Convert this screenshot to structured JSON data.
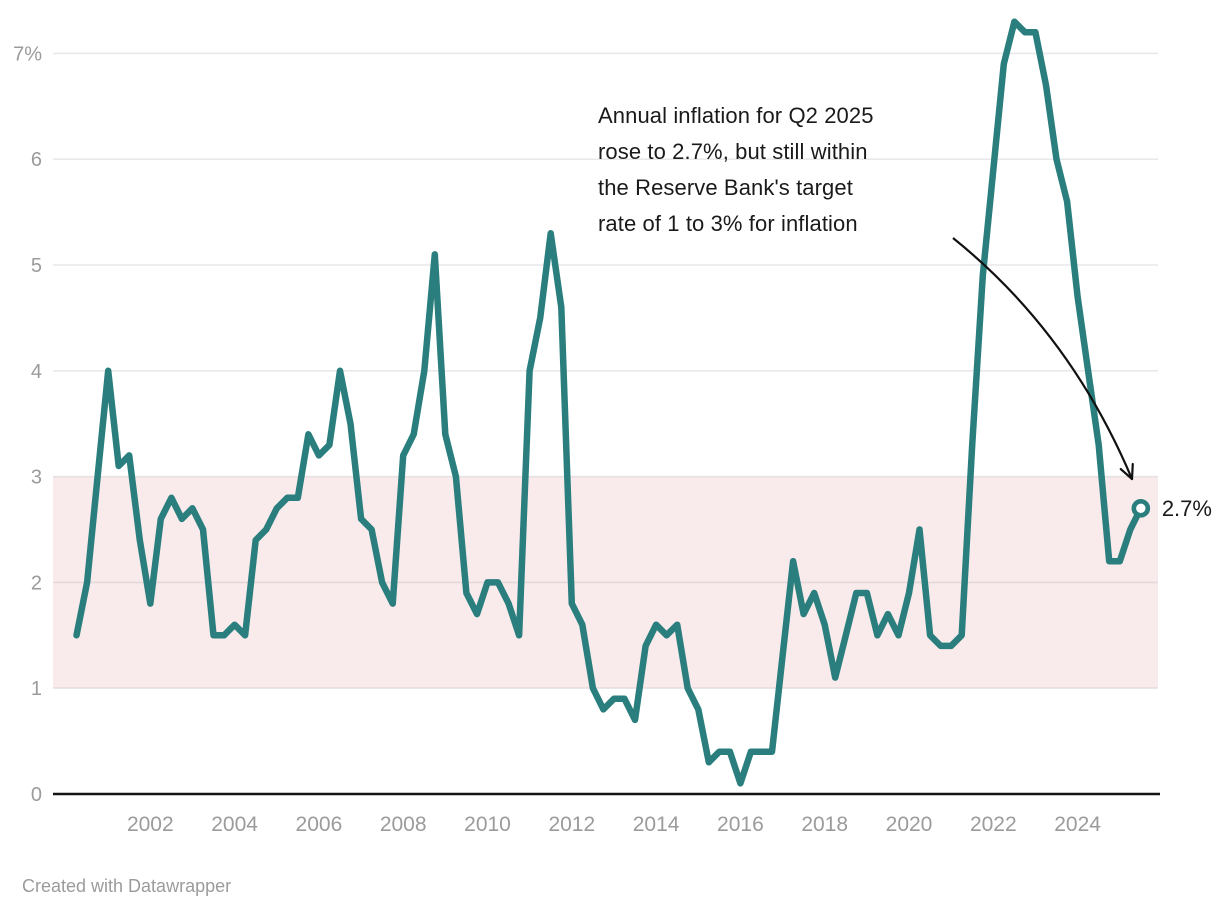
{
  "chart_data": {
    "type": "line",
    "title": "",
    "unit": "%",
    "frequency": "quarterly",
    "series_name": "Annual inflation rate",
    "x_start": "2000 Q1",
    "x_end": "2025 Q2",
    "values_by_year": {
      "2000": [
        1.5,
        2.0,
        3.0,
        4.0
      ],
      "2001": [
        3.1,
        3.2,
        2.4,
        1.8
      ],
      "2002": [
        2.6,
        2.8,
        2.6,
        2.7
      ],
      "2003": [
        2.5,
        1.5,
        1.5,
        1.6
      ],
      "2004": [
        1.5,
        2.4,
        2.5,
        2.7
      ],
      "2005": [
        2.8,
        2.8,
        3.4,
        3.2
      ],
      "2006": [
        3.3,
        4.0,
        3.5,
        2.6
      ],
      "2007": [
        2.5,
        2.0,
        1.8,
        3.2
      ],
      "2008": [
        3.4,
        4.0,
        5.1,
        3.4
      ],
      "2009": [
        3.0,
        1.9,
        1.7,
        2.0
      ],
      "2010": [
        2.0,
        1.8,
        1.5,
        4.0
      ],
      "2011": [
        4.5,
        5.3,
        4.6,
        1.8
      ],
      "2012": [
        1.6,
        1.0,
        0.8,
        0.9
      ],
      "2013": [
        0.9,
        0.7,
        1.4,
        1.6
      ],
      "2014": [
        1.5,
        1.6,
        1.0,
        0.8
      ],
      "2015": [
        0.3,
        0.4,
        0.4,
        0.1
      ],
      "2016": [
        0.4,
        0.4,
        0.4,
        1.3
      ],
      "2017": [
        2.2,
        1.7,
        1.9,
        1.6
      ],
      "2018": [
        1.1,
        1.5,
        1.9,
        1.9
      ],
      "2019": [
        1.5,
        1.7,
        1.5,
        1.9
      ],
      "2020": [
        2.5,
        1.5,
        1.4,
        1.4
      ],
      "2021": [
        1.5,
        3.3,
        4.9,
        5.9
      ],
      "2022": [
        6.9,
        7.3,
        7.2,
        7.2
      ],
      "2023": [
        6.7,
        6.0,
        5.6,
        4.7
      ],
      "2024": [
        4.0,
        3.3,
        2.2,
        2.2
      ],
      "2025": [
        2.5,
        2.7
      ]
    },
    "ylim": [
      0,
      7.5
    ],
    "y_ticks": [
      0,
      1,
      2,
      3,
      4,
      5,
      6,
      7
    ],
    "y_tick_labels": [
      "0",
      "1",
      "2",
      "3",
      "4",
      "5",
      "6",
      "7%"
    ],
    "x_tick_years": [
      2002,
      2004,
      2006,
      2008,
      2010,
      2012,
      2014,
      2016,
      2018,
      2020,
      2022,
      2024
    ],
    "grid": "horizontal",
    "legend_position": "none",
    "line_color": "#2A7E7D",
    "target_band": {
      "from": 1,
      "to": 3,
      "color": "#F9EBEB",
      "meaning": "Reserve Bank target range 1 to 3%"
    },
    "end_point": {
      "x": "2025 Q2",
      "value": 2.7,
      "label": "2.7%"
    },
    "annotation": {
      "lines": [
        "Annual inflation for Q2 2025",
        "rose to 2.7%, but still within",
        "the Reserve Bank's target",
        "rate of 1 to 3% for inflation"
      ]
    },
    "colors": {
      "axis_baseline": "#141414",
      "tick_label": "#9b9b9b",
      "annotation_text": "#1a1a1a",
      "arrow": "#111111"
    }
  },
  "footer": {
    "credit": "Created with Datawrapper"
  }
}
